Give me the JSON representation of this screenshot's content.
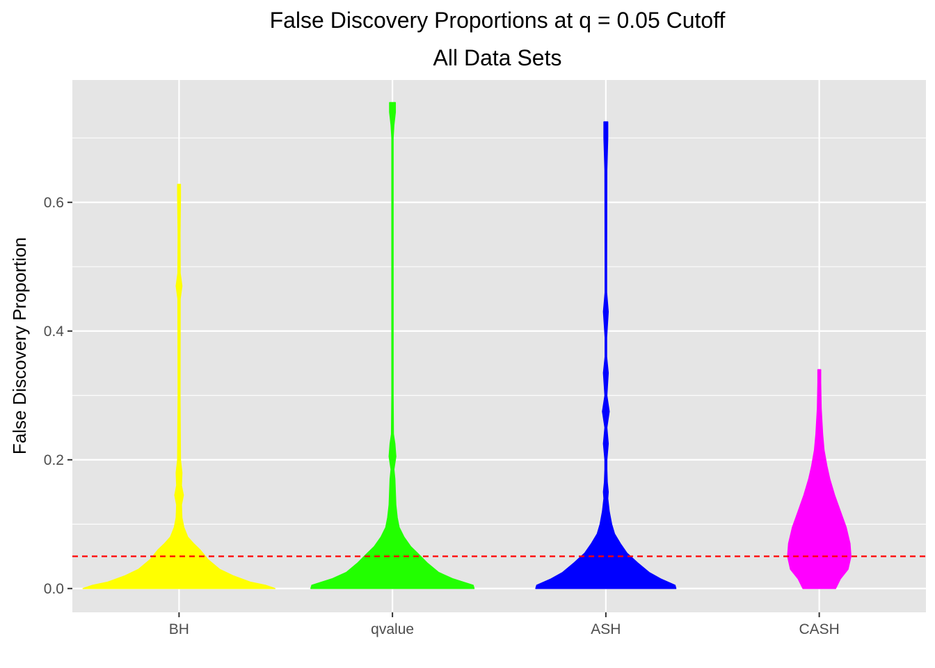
{
  "chart_data": {
    "type": "violin",
    "title": "False Discovery Proportions at q = 0.05 Cutoff",
    "subtitle": "All Data Sets",
    "xlabel": "",
    "ylabel": "False Discovery Proportion",
    "ylim": [
      -0.037,
      0.79
    ],
    "yticks": [
      0.0,
      0.2,
      0.4,
      0.6
    ],
    "ytick_labels": [
      "0.0",
      "0.2",
      "0.4",
      "0.6"
    ],
    "grid": true,
    "legend": "none",
    "reference_line": {
      "y": 0.05,
      "color": "#ff0000",
      "style": "dashed"
    },
    "categories": [
      "BH",
      "qvalue",
      "ASH",
      "CASH"
    ],
    "series": [
      {
        "category": "BH",
        "color": "#ffff00",
        "min": 0.0,
        "max": 0.628,
        "density": [
          [
            0.0,
            1.0
          ],
          [
            0.005,
            0.9
          ],
          [
            0.01,
            0.74
          ],
          [
            0.02,
            0.56
          ],
          [
            0.03,
            0.42
          ],
          [
            0.045,
            0.3
          ],
          [
            0.06,
            0.22
          ],
          [
            0.07,
            0.15
          ],
          [
            0.08,
            0.09
          ],
          [
            0.095,
            0.05
          ],
          [
            0.11,
            0.03
          ],
          [
            0.13,
            0.025
          ],
          [
            0.145,
            0.045
          ],
          [
            0.16,
            0.025
          ],
          [
            0.18,
            0.03
          ],
          [
            0.2,
            0.015
          ],
          [
            0.3,
            0.01
          ],
          [
            0.45,
            0.012
          ],
          [
            0.47,
            0.03
          ],
          [
            0.49,
            0.012
          ],
          [
            0.55,
            0.01
          ],
          [
            0.61,
            0.015
          ],
          [
            0.628,
            0.015
          ]
        ]
      },
      {
        "category": "qvalue",
        "color": "#22ff00",
        "min": 0.0,
        "max": 0.755,
        "density": [
          [
            0.0,
            0.85
          ],
          [
            0.005,
            0.84
          ],
          [
            0.015,
            0.63
          ],
          [
            0.025,
            0.48
          ],
          [
            0.04,
            0.36
          ],
          [
            0.055,
            0.26
          ],
          [
            0.065,
            0.19
          ],
          [
            0.08,
            0.12
          ],
          [
            0.095,
            0.07
          ],
          [
            0.11,
            0.05
          ],
          [
            0.13,
            0.035
          ],
          [
            0.15,
            0.03
          ],
          [
            0.17,
            0.025
          ],
          [
            0.185,
            0.015
          ],
          [
            0.205,
            0.035
          ],
          [
            0.225,
            0.025
          ],
          [
            0.24,
            0.01
          ],
          [
            0.3,
            0.007
          ],
          [
            0.5,
            0.007
          ],
          [
            0.7,
            0.007
          ],
          [
            0.72,
            0.015
          ],
          [
            0.74,
            0.03
          ],
          [
            0.755,
            0.03
          ]
        ]
      },
      {
        "category": "ASH",
        "color": "#0000ff",
        "min": 0.0,
        "max": 0.725,
        "density": [
          [
            0.0,
            0.73
          ],
          [
            0.005,
            0.72
          ],
          [
            0.015,
            0.57
          ],
          [
            0.025,
            0.45
          ],
          [
            0.04,
            0.33
          ],
          [
            0.055,
            0.22
          ],
          [
            0.07,
            0.15
          ],
          [
            0.085,
            0.09
          ],
          [
            0.1,
            0.06
          ],
          [
            0.12,
            0.035
          ],
          [
            0.14,
            0.02
          ],
          [
            0.15,
            0.025
          ],
          [
            0.165,
            0.015
          ],
          [
            0.185,
            0.01
          ],
          [
            0.2,
            0.01
          ],
          [
            0.225,
            0.025
          ],
          [
            0.25,
            0.01
          ],
          [
            0.275,
            0.035
          ],
          [
            0.3,
            0.01
          ],
          [
            0.335,
            0.025
          ],
          [
            0.36,
            0.008
          ],
          [
            0.39,
            0.008
          ],
          [
            0.43,
            0.025
          ],
          [
            0.46,
            0.008
          ],
          [
            0.5,
            0.008
          ],
          [
            0.65,
            0.01
          ],
          [
            0.7,
            0.02
          ],
          [
            0.725,
            0.02
          ]
        ]
      },
      {
        "category": "CASH",
        "color": "#ff00ff",
        "min": 0.0,
        "max": 0.34,
        "density": [
          [
            0.0,
            0.17
          ],
          [
            0.015,
            0.22
          ],
          [
            0.03,
            0.3
          ],
          [
            0.05,
            0.33
          ],
          [
            0.07,
            0.32
          ],
          [
            0.095,
            0.28
          ],
          [
            0.12,
            0.22
          ],
          [
            0.145,
            0.16
          ],
          [
            0.17,
            0.11
          ],
          [
            0.19,
            0.08
          ],
          [
            0.215,
            0.05
          ],
          [
            0.24,
            0.035
          ],
          [
            0.28,
            0.02
          ],
          [
            0.32,
            0.015
          ],
          [
            0.34,
            0.015
          ]
        ]
      }
    ]
  }
}
